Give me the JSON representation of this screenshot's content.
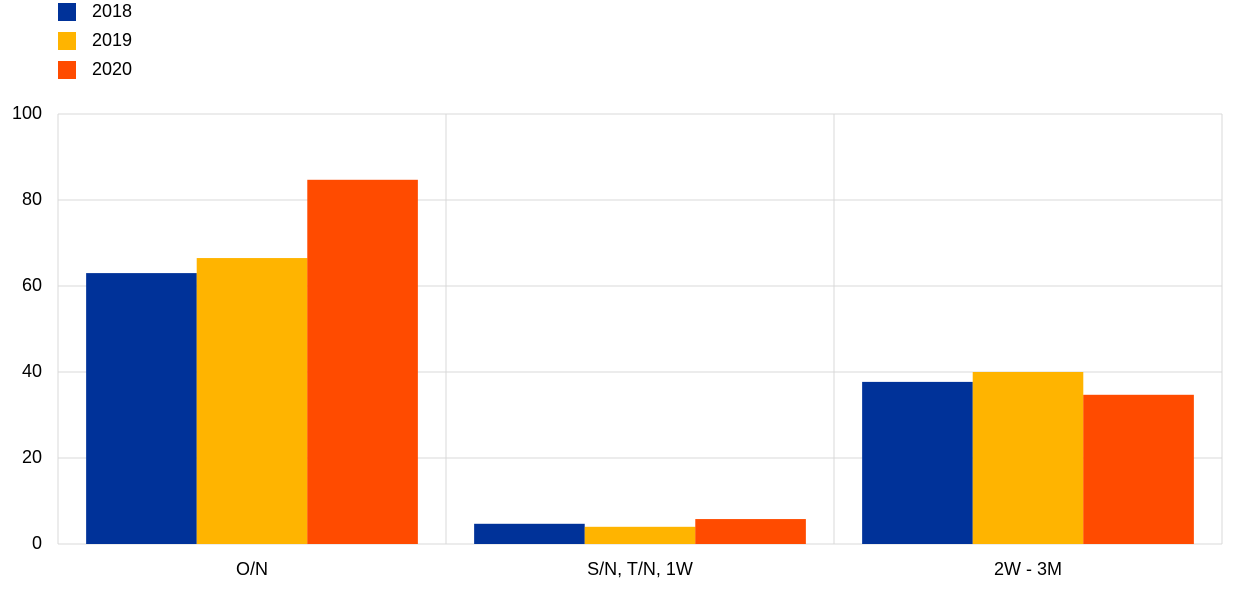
{
  "chart_data": {
    "type": "bar",
    "categories": [
      "O/N",
      "S/N, T/N, 1W",
      "2W - 3M"
    ],
    "series": [
      {
        "name": "2018",
        "color": "#003299",
        "values": [
          63.0,
          4.7,
          37.7
        ]
      },
      {
        "name": "2019",
        "color": "#ffb400",
        "values": [
          66.5,
          4.0,
          40.0
        ]
      },
      {
        "name": "2020",
        "color": "#ff4b00",
        "values": [
          84.7,
          5.8,
          34.7
        ]
      }
    ],
    "ylim": [
      0,
      100
    ],
    "yticks": [
      0,
      20,
      40,
      60,
      80,
      100
    ],
    "grid": true,
    "legend": "top-left"
  }
}
